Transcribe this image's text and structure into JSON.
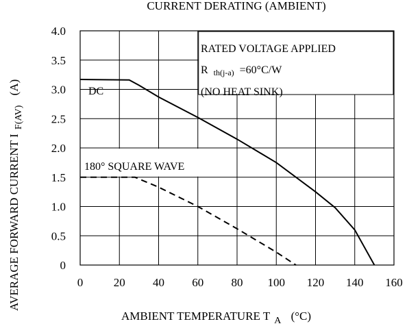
{
  "chart_data": {
    "type": "line",
    "title": "CURRENT DERATING (AMBIENT)",
    "xlabel": "AMBIENT TEMPERATURE T",
    "xlabel_sub": "A",
    "xlabel_unit": "(°C)",
    "ylabel": "AVERAGE FORWARD CURRENT I",
    "ylabel_sub": "F(AV)",
    "ylabel_unit": "(A)",
    "xlim": [
      0,
      160
    ],
    "ylim": [
      0,
      4.0
    ],
    "x_ticks": [
      "0",
      "20",
      "40",
      "60",
      "80",
      "100",
      "120",
      "140",
      "160"
    ],
    "y_ticks": [
      "0",
      "0.5",
      "1.0",
      "1.5",
      "2.0",
      "2.5",
      "3.0",
      "3.5",
      "4.0"
    ],
    "grid": true,
    "annotations": {
      "rated": "RATED VOLTAGE APPLIED",
      "rth_main": "R",
      "rth_sub": "th(j-a)",
      "rth_val": "=60°C/W",
      "heatsink": "(NO HEAT SINK)"
    },
    "series": [
      {
        "name": "DC",
        "style": "solid",
        "x": [
          0,
          25,
          30,
          40,
          60,
          80,
          100,
          120,
          130,
          140,
          150
        ],
        "y": [
          3.17,
          3.16,
          3.07,
          2.87,
          2.52,
          2.15,
          1.75,
          1.25,
          0.98,
          0.6,
          0
        ]
      },
      {
        "name": "180° SQUARE WAVE",
        "style": "dashed",
        "x": [
          0,
          28,
          40,
          60,
          80,
          100,
          110
        ],
        "y": [
          1.5,
          1.5,
          1.33,
          1.0,
          0.62,
          0.22,
          0
        ]
      }
    ]
  }
}
